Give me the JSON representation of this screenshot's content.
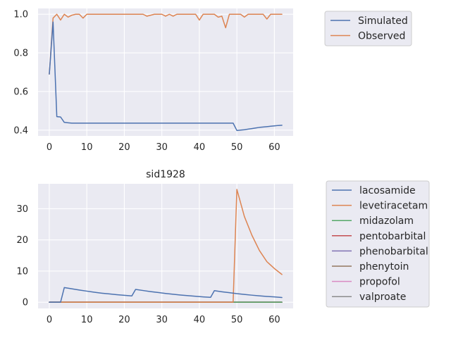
{
  "chart_data": [
    {
      "type": "line",
      "title": "",
      "xlabel": "",
      "ylabel": "",
      "xlim": [
        -3,
        65
      ],
      "ylim": [
        0.37,
        1.03
      ],
      "xticks": [
        0,
        10,
        20,
        30,
        40,
        50,
        60
      ],
      "yticks": [
        0.4,
        0.6,
        0.8,
        1.0
      ],
      "ytick_labels": [
        "0.4",
        "0.6",
        "0.8",
        "1.0"
      ],
      "grid": true,
      "legend_position": "outside-upper-right",
      "series": [
        {
          "name": "Simulated",
          "color": "#4c72b0",
          "x": [
            0,
            1,
            2,
            3,
            4,
            5,
            6,
            7,
            8,
            9,
            10,
            11,
            12,
            13,
            14,
            15,
            16,
            17,
            18,
            19,
            20,
            21,
            22,
            23,
            24,
            25,
            26,
            27,
            28,
            29,
            30,
            31,
            32,
            33,
            34,
            35,
            36,
            37,
            38,
            39,
            40,
            41,
            42,
            43,
            44,
            45,
            46,
            47,
            48,
            49,
            50,
            51,
            52,
            53,
            54,
            55,
            56,
            57,
            58,
            59,
            60,
            61,
            62
          ],
          "values": [
            0.69,
            0.96,
            0.47,
            0.468,
            0.44,
            0.438,
            0.436,
            0.436,
            0.436,
            0.436,
            0.436,
            0.436,
            0.436,
            0.436,
            0.436,
            0.436,
            0.436,
            0.436,
            0.436,
            0.436,
            0.436,
            0.436,
            0.436,
            0.436,
            0.436,
            0.436,
            0.436,
            0.436,
            0.436,
            0.436,
            0.436,
            0.436,
            0.436,
            0.436,
            0.436,
            0.436,
            0.436,
            0.436,
            0.436,
            0.436,
            0.436,
            0.436,
            0.436,
            0.436,
            0.436,
            0.436,
            0.436,
            0.436,
            0.436,
            0.436,
            0.398,
            0.4,
            0.402,
            0.405,
            0.408,
            0.411,
            0.414,
            0.416,
            0.418,
            0.42,
            0.422,
            0.424,
            0.425
          ]
        },
        {
          "name": "Observed",
          "color": "#dd8452",
          "x": [
            0,
            1,
            2,
            3,
            4,
            5,
            6,
            7,
            8,
            9,
            10,
            11,
            12,
            13,
            14,
            15,
            16,
            17,
            18,
            19,
            20,
            21,
            22,
            23,
            24,
            25,
            26,
            27,
            28,
            29,
            30,
            31,
            32,
            33,
            34,
            35,
            36,
            37,
            38,
            39,
            40,
            41,
            42,
            43,
            44,
            45,
            46,
            47,
            48,
            49,
            50,
            51,
            52,
            53,
            54,
            55,
            56,
            57,
            58,
            59,
            60,
            61,
            62
          ],
          "values": [
            0.69,
            0.98,
            1.0,
            0.97,
            1.0,
            0.985,
            0.995,
            1.0,
            1.0,
            0.98,
            1.0,
            1.0,
            1.0,
            1.0,
            1.0,
            1.0,
            1.0,
            1.0,
            1.0,
            1.0,
            1.0,
            1.0,
            1.0,
            1.0,
            1.0,
            1.0,
            0.99,
            0.995,
            1.0,
            1.0,
            1.0,
            0.99,
            1.0,
            0.99,
            1.0,
            1.0,
            1.0,
            1.0,
            1.0,
            1.0,
            0.97,
            1.0,
            1.0,
            1.0,
            1.0,
            0.985,
            0.99,
            0.93,
            1.0,
            1.0,
            1.0,
            1.0,
            0.985,
            1.0,
            1.0,
            1.0,
            1.0,
            1.0,
            0.975,
            1.0,
            1.0,
            1.0,
            1.0
          ]
        }
      ]
    },
    {
      "type": "line",
      "title": "sid1928",
      "xlabel": "",
      "ylabel": "",
      "xlim": [
        -3,
        65
      ],
      "ylim": [
        -2,
        38
      ],
      "xticks": [
        0,
        10,
        20,
        30,
        40,
        50,
        60
      ],
      "yticks": [
        0,
        10,
        20,
        30
      ],
      "ytick_labels": [
        "0",
        "10",
        "20",
        "30"
      ],
      "grid": true,
      "legend_position": "outside-upper-right",
      "series": [
        {
          "name": "lacosamide",
          "color": "#4c72b0",
          "x": [
            0,
            3,
            4,
            6,
            8,
            10,
            12,
            14,
            16,
            18,
            20,
            22,
            23,
            25,
            27,
            29,
            31,
            33,
            35,
            37,
            39,
            41,
            43,
            44,
            46,
            48,
            50,
            52,
            54,
            56,
            58,
            60,
            62
          ],
          "values": [
            0,
            0,
            4.7,
            4.3,
            3.9,
            3.55,
            3.2,
            2.9,
            2.65,
            2.4,
            2.2,
            2.0,
            4.1,
            3.75,
            3.4,
            3.1,
            2.8,
            2.55,
            2.3,
            2.1,
            1.9,
            1.7,
            1.55,
            3.7,
            3.35,
            3.05,
            2.75,
            2.5,
            2.25,
            2.05,
            1.85,
            1.7,
            1.5
          ]
        },
        {
          "name": "levetiracetam",
          "color": "#dd8452",
          "x": [
            0,
            49,
            50,
            52,
            54,
            56,
            58,
            60,
            62
          ],
          "values": [
            0,
            0,
            36.2,
            27.5,
            21.5,
            16.6,
            13.0,
            10.8,
            8.9
          ]
        },
        {
          "name": "midazolam",
          "color": "#55a868",
          "x": [
            0,
            62
          ],
          "values": [
            0,
            0
          ]
        },
        {
          "name": "pentobarbital",
          "color": "#c44e52",
          "x": [
            0,
            62
          ],
          "values": [
            0,
            0
          ]
        },
        {
          "name": "phenobarbital",
          "color": "#8172b3",
          "x": [
            0,
            62
          ],
          "values": [
            0,
            0
          ]
        },
        {
          "name": "phenytoin",
          "color": "#937860",
          "x": [
            0,
            62
          ],
          "values": [
            0,
            0
          ]
        },
        {
          "name": "propofol",
          "color": "#da8bc3",
          "x": [
            0,
            62
          ],
          "values": [
            0,
            0
          ]
        },
        {
          "name": "valproate",
          "color": "#8c8c8c",
          "x": [
            0,
            62
          ],
          "values": [
            0,
            0
          ]
        }
      ]
    }
  ]
}
